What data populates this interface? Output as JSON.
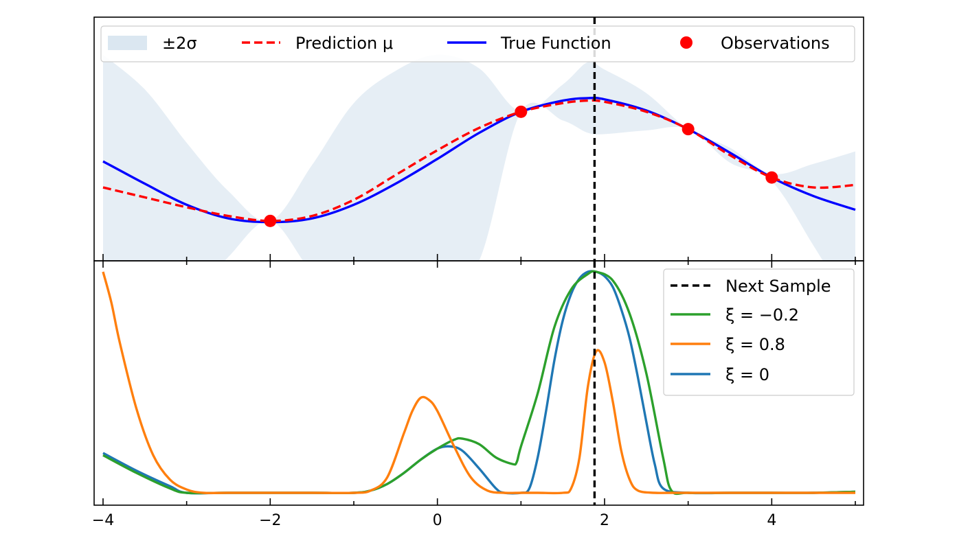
{
  "chart_data": [
    {
      "type": "line",
      "panel": "top",
      "title": "",
      "xlabel": "",
      "ylabel": "",
      "xlim": [
        -4,
        5
      ],
      "yticks_shown": false,
      "legend": {
        "placement": "top",
        "entries": [
          {
            "label": "±2σ",
            "kind": "band",
            "color": "#dbe7f1"
          },
          {
            "label": "Prediction μ",
            "kind": "dashed-line",
            "color": "#ff0000"
          },
          {
            "label": "True Function",
            "kind": "line",
            "color": "#0000ff"
          },
          {
            "label": "Observations",
            "kind": "marker",
            "color": "#ff0000"
          }
        ]
      },
      "series": [
        {
          "name": "True Function",
          "color": "#0000ff",
          "x": [
            -4,
            -3.5,
            -3,
            -2.5,
            -2,
            -1.5,
            -1,
            -0.5,
            0,
            0.5,
            1,
            1.5,
            1.8,
            2,
            2.5,
            3,
            3.5,
            4,
            4.5,
            5
          ],
          "y": [
            0.4,
            0.22,
            0.05,
            -0.06,
            -0.09,
            -0.06,
            0.05,
            0.22,
            0.42,
            0.63,
            0.8,
            0.89,
            0.91,
            0.9,
            0.81,
            0.66,
            0.47,
            0.27,
            0.12,
            0.01
          ]
        },
        {
          "name": "Prediction μ",
          "color": "#ff0000",
          "dash": true,
          "x": [
            -4,
            -3.5,
            -3,
            -2.5,
            -2,
            -1.5,
            -1,
            -0.5,
            0,
            0.5,
            1,
            1.5,
            1.8,
            2,
            2.5,
            3,
            3.5,
            4,
            4.5,
            5
          ],
          "y": [
            0.19,
            0.11,
            0.03,
            -0.04,
            -0.08,
            -0.04,
            0.09,
            0.29,
            0.49,
            0.67,
            0.8,
            0.87,
            0.89,
            0.88,
            0.8,
            0.66,
            0.45,
            0.27,
            0.19,
            0.21
          ]
        },
        {
          "name": "±2σ",
          "color": "#dbe7f1",
          "x": [
            -4,
            -3.5,
            -3,
            -2.5,
            -2,
            -1.5,
            -1,
            -0.5,
            0,
            0.5,
            1,
            1.5,
            1.8,
            2,
            2.5,
            3,
            3.5,
            4,
            4.5,
            5
          ],
          "upper": [
            1.26,
            0.98,
            0.55,
            0.16,
            -0.08,
            0.37,
            0.87,
            1.13,
            1.26,
            1.15,
            0.8,
            1.02,
            1.2,
            1.14,
            0.95,
            0.66,
            0.51,
            0.3,
            0.38,
            0.48
          ],
          "lower": [
            -0.84,
            -0.89,
            -0.76,
            -0.37,
            -0.08,
            -0.49,
            -0.73,
            -0.78,
            -0.67,
            -0.4,
            0.8,
            0.73,
            0.63,
            0.62,
            0.65,
            0.66,
            0.39,
            0.24,
            -0.28,
            -0.83
          ]
        }
      ],
      "observations": {
        "name": "Observations",
        "color": "#ff0000",
        "x": [
          -2,
          1,
          3,
          4
        ],
        "y": [
          -0.08,
          0.8,
          0.66,
          0.27
        ]
      },
      "next_sample_x": 1.88
    },
    {
      "type": "line",
      "panel": "bottom",
      "title": "",
      "xlabel": "",
      "ylabel": "",
      "xlim": [
        -4,
        5
      ],
      "ylim": [
        0,
        1
      ],
      "yticks_shown": false,
      "xticks": [
        -4,
        -2,
        0,
        2,
        4
      ],
      "xtick_labels": [
        "−4",
        "−2",
        "0",
        "2",
        "4"
      ],
      "legend": {
        "placement": "top-right",
        "entries": [
          {
            "label": "Next Sample",
            "kind": "dashed-line",
            "color": "#000000"
          },
          {
            "label": "ξ = −0.2",
            "kind": "line",
            "color": "#2ca02c"
          },
          {
            "label": "ξ = 0.8",
            "kind": "line",
            "color": "#ff7f0e"
          },
          {
            "label": "ξ = 0",
            "kind": "line",
            "color": "#1f77b4"
          }
        ]
      },
      "series": [
        {
          "name": "ξ = −0.2",
          "color": "#2ca02c",
          "x": [
            -4,
            -3.6,
            -3.2,
            -3.0,
            -2.5,
            -1.5,
            -1.0,
            -0.8,
            -0.6,
            -0.4,
            -0.2,
            0,
            0.2,
            0.3,
            0.5,
            0.7,
            0.9,
            0.95,
            1.0,
            1.2,
            1.4,
            1.6,
            1.8,
            1.9,
            2.1,
            2.3,
            2.5,
            2.7,
            2.8,
            3.0,
            3.5,
            4,
            4.5,
            5
          ],
          "y": [
            0.17,
            0.09,
            0.02,
            0.0,
            0.0,
            0.0,
            0.0,
            0.01,
            0.04,
            0.09,
            0.15,
            0.2,
            0.24,
            0.245,
            0.22,
            0.16,
            0.13,
            0.14,
            0.21,
            0.45,
            0.75,
            0.92,
            0.99,
            1.0,
            0.96,
            0.81,
            0.54,
            0.16,
            0.01,
            0.0,
            0.0,
            0.0,
            0.0,
            0.005
          ]
        },
        {
          "name": "ξ = 0.8",
          "color": "#ff7f0e",
          "x": [
            -4,
            -3.9,
            -3.8,
            -3.6,
            -3.4,
            -3.2,
            -3.0,
            -2.8,
            -2.5,
            -1.5,
            -1.0,
            -0.8,
            -0.6,
            -0.4,
            -0.3,
            -0.2,
            -0.1,
            0,
            0.2,
            0.4,
            0.6,
            0.8,
            1.0,
            1.2,
            1.5,
            1.6,
            1.7,
            1.8,
            1.9,
            2.0,
            2.1,
            2.2,
            2.3,
            2.4,
            2.6,
            2.8,
            3.5,
            4,
            4.5,
            5
          ],
          "y": [
            1.0,
            0.86,
            0.68,
            0.38,
            0.17,
            0.06,
            0.015,
            0.0,
            0.0,
            0.0,
            0.0,
            0.01,
            0.07,
            0.27,
            0.37,
            0.43,
            0.42,
            0.37,
            0.21,
            0.07,
            0.01,
            0.0,
            0.0,
            0.0,
            0.0,
            0.02,
            0.16,
            0.48,
            0.64,
            0.59,
            0.41,
            0.19,
            0.06,
            0.01,
            0.0,
            0.0,
            0.0,
            0.0,
            0.0,
            0.0
          ]
        },
        {
          "name": "ξ = 0",
          "color": "#1f77b4",
          "x": [
            -4,
            -3.6,
            -3.2,
            -3.0,
            -2.5,
            -1.5,
            -1.0,
            -0.8,
            -0.6,
            -0.4,
            -0.2,
            0,
            0.15,
            0.3,
            0.5,
            0.7,
            0.8,
            1.0,
            1.1,
            1.2,
            1.3,
            1.4,
            1.5,
            1.6,
            1.7,
            1.8,
            1.9,
            2.0,
            2.1,
            2.2,
            2.3,
            2.4,
            2.5,
            2.6,
            2.7,
            3.0,
            3.5,
            4,
            4.5,
            5
          ],
          "y": [
            0.18,
            0.1,
            0.03,
            0.0,
            0.0,
            0.0,
            0.0,
            0.01,
            0.04,
            0.09,
            0.15,
            0.2,
            0.21,
            0.19,
            0.11,
            0.02,
            0.0,
            0.0,
            0.02,
            0.16,
            0.37,
            0.6,
            0.78,
            0.9,
            0.97,
            1.0,
            1.0,
            0.98,
            0.93,
            0.83,
            0.7,
            0.52,
            0.32,
            0.13,
            0.02,
            0.0,
            0.0,
            0.0,
            0.0,
            0.005
          ]
        }
      ],
      "next_sample_x": 1.88
    }
  ]
}
